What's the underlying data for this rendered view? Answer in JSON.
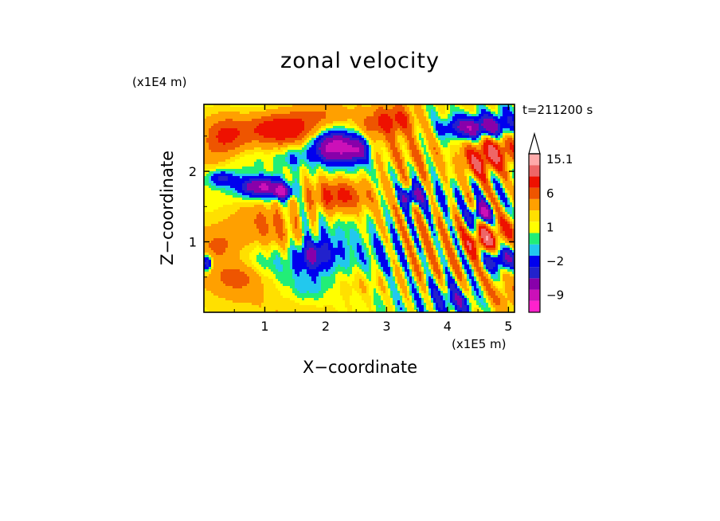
{
  "chart_data": {
    "type": "heatmap",
    "title": "zonal velocity",
    "xlabel": "X−coordinate",
    "ylabel": "Z−coordinate",
    "x_scale_label": "(x1E5 m)",
    "y_scale_label": "(x1E4 m)",
    "time_label": "t=211200 s",
    "xlim": [
      0.0,
      5.1
    ],
    "ylim": [
      0.0,
      2.95
    ],
    "xticks": [
      {
        "value": 1,
        "label": "1"
      },
      {
        "value": 2,
        "label": "2"
      },
      {
        "value": 3,
        "label": "3"
      },
      {
        "value": 4,
        "label": "4"
      },
      {
        "value": 5,
        "label": "5"
      }
    ],
    "yticks": [
      {
        "value": 1,
        "label": "1"
      },
      {
        "value": 2,
        "label": "2"
      }
    ],
    "colorbar": {
      "levels": [
        -12,
        -9,
        -6,
        -4,
        -2,
        -1,
        0,
        1,
        2,
        4,
        6,
        9,
        12,
        15.1
      ],
      "colors": [
        "#ff22cc",
        "#cc10b8",
        "#8800aa",
        "#2222cc",
        "#0000ee",
        "#22c8ee",
        "#22ee77",
        "#ffff00",
        "#ffe000",
        "#ffa000",
        "#ee5500",
        "#ee1100",
        "#ee6666",
        "#ffaaaa"
      ],
      "tick_labels": [
        {
          "value": 15.1,
          "label": "15.1"
        },
        {
          "value": 6,
          "label": "6"
        },
        {
          "value": 1,
          "label": "1"
        },
        {
          "value": -2,
          "label": "−2"
        },
        {
          "value": -9,
          "label": "−9"
        }
      ],
      "extend": "max"
    },
    "background_value": 0.8,
    "features": [
      {
        "x": 0.35,
        "z": 2.5,
        "sx": 0.25,
        "sz": 0.2,
        "v": 5.5
      },
      {
        "x": 1.1,
        "z": 2.6,
        "sx": 0.35,
        "sz": 0.15,
        "v": 5.5
      },
      {
        "x": 1.55,
        "z": 2.6,
        "sx": 0.35,
        "sz": 0.2,
        "v": 4.5
      },
      {
        "x": 2.0,
        "z": 2.82,
        "sx": 0.3,
        "sz": 0.12,
        "v": 2.5
      },
      {
        "x": 2.15,
        "z": 2.35,
        "sx": 0.28,
        "sz": 0.16,
        "v": -12
      },
      {
        "x": 2.55,
        "z": 2.3,
        "sx": 0.12,
        "sz": 0.12,
        "v": -6
      },
      {
        "x": 1.45,
        "z": 2.2,
        "sx": 0.16,
        "sz": 0.12,
        "v": -3
      },
      {
        "x": 0.3,
        "z": 1.9,
        "sx": 0.16,
        "sz": 0.08,
        "v": -5
      },
      {
        "x": 0.95,
        "z": 1.78,
        "sx": 0.26,
        "sz": 0.1,
        "v": -10
      },
      {
        "x": 1.3,
        "z": 1.7,
        "sx": 0.12,
        "sz": 0.07,
        "v": -8
      },
      {
        "x": 2.2,
        "z": 1.65,
        "sx": 0.35,
        "sz": 0.17,
        "v": 6
      },
      {
        "x": 2.7,
        "z": 2.0,
        "sx": 0.5,
        "sz": 0.15,
        "v": -1.5
      },
      {
        "x": 2.8,
        "z": 2.65,
        "sx": 0.25,
        "sz": 0.16,
        "v": 3.5
      },
      {
        "x": 3.3,
        "z": 2.2,
        "sx": 0.4,
        "sz": 0.22,
        "v": 2.5
      },
      {
        "x": 3.2,
        "z": 2.75,
        "sx": 0.25,
        "sz": 0.15,
        "v": 5
      },
      {
        "x": 3.6,
        "z": 2.85,
        "sx": 0.25,
        "sz": 0.12,
        "v": -1.5
      },
      {
        "x": 4.45,
        "z": 2.62,
        "sx": 0.35,
        "sz": 0.12,
        "v": -10
      },
      {
        "x": 4.95,
        "z": 2.7,
        "sx": 0.18,
        "sz": 0.16,
        "v": -3
      },
      {
        "x": 3.4,
        "z": 1.65,
        "sx": 0.13,
        "sz": 0.1,
        "v": -8
      },
      {
        "x": 3.85,
        "z": 1.6,
        "sx": 0.3,
        "sz": 0.15,
        "v": -2.5
      },
      {
        "x": 4.8,
        "z": 2.3,
        "sx": 0.3,
        "sz": 0.18,
        "v": 6.5
      },
      {
        "x": 4.5,
        "z": 2.1,
        "sx": 0.2,
        "sz": 0.15,
        "v": 5
      },
      {
        "x": 4.55,
        "z": 1.4,
        "sx": 0.12,
        "sz": 0.1,
        "v": -10
      },
      {
        "x": 4.55,
        "z": 1.0,
        "sx": 0.16,
        "sz": 0.13,
        "v": 7
      },
      {
        "x": 4.9,
        "z": 0.75,
        "sx": 0.22,
        "sz": 0.12,
        "v": -8
      },
      {
        "x": 4.95,
        "z": 1.15,
        "sx": 0.22,
        "sz": 0.15,
        "v": 4
      },
      {
        "x": 0.9,
        "z": 1.3,
        "sx": 0.35,
        "sz": 0.2,
        "v": 3.5
      },
      {
        "x": 1.3,
        "z": 1.1,
        "sx": 0.3,
        "sz": 0.2,
        "v": 2.5
      },
      {
        "x": 2.2,
        "z": 1.0,
        "sx": 0.45,
        "sz": 0.3,
        "v": -1.5
      },
      {
        "x": 1.0,
        "z": 0.65,
        "sx": 0.35,
        "sz": 0.2,
        "v": -2.5
      },
      {
        "x": 0.6,
        "z": 0.5,
        "sx": 0.3,
        "sz": 0.15,
        "v": 4
      },
      {
        "x": 0.25,
        "z": 0.95,
        "sx": 0.25,
        "sz": 0.18,
        "v": 3
      },
      {
        "x": 1.7,
        "z": 0.35,
        "sx": 0.25,
        "sz": 0.15,
        "v": -2.5
      },
      {
        "x": 1.8,
        "z": 0.8,
        "sx": 0.2,
        "sz": 0.15,
        "v": -6
      },
      {
        "x": 2.6,
        "z": 0.4,
        "sx": 0.35,
        "sz": 0.15,
        "v": 2
      },
      {
        "x": 3.0,
        "z": 0.8,
        "sx": 0.25,
        "sz": 0.2,
        "v": -1.5
      },
      {
        "x": 3.6,
        "z": 0.6,
        "sx": 0.3,
        "sz": 0.25,
        "v": 1.5
      },
      {
        "x": 3.9,
        "z": 0.3,
        "sx": 0.25,
        "sz": 0.15,
        "v": -2
      },
      {
        "x": 4.2,
        "z": 0.15,
        "sx": 0.22,
        "sz": 0.12,
        "v": -4
      },
      {
        "x": 4.9,
        "z": 0.2,
        "sx": 0.25,
        "sz": 0.15,
        "v": 2
      },
      {
        "x": 0.05,
        "z": 0.7,
        "sx": 0.06,
        "sz": 0.08,
        "v": -8
      },
      {
        "x": 0.1,
        "z": 2.2,
        "sx": 0.18,
        "sz": 0.15,
        "v": 1.5
      },
      {
        "x": 0.75,
        "z": 2.15,
        "sx": 0.35,
        "sz": 0.12,
        "v": -1
      }
    ],
    "waves": [
      {
        "x": 3.6,
        "z": 1.25,
        "sx": 0.6,
        "sz": 1.0,
        "kx": 6.0,
        "kz": 2.5,
        "amp": 4.5
      },
      {
        "x": 4.6,
        "z": 1.5,
        "sx": 0.45,
        "sz": 1.2,
        "kx": 5.0,
        "kz": 3.0,
        "amp": 4.0
      },
      {
        "x": 1.6,
        "z": 1.35,
        "sx": 0.4,
        "sz": 0.5,
        "kx": 7.0,
        "kz": 1.5,
        "amp": 2.5
      }
    ]
  }
}
